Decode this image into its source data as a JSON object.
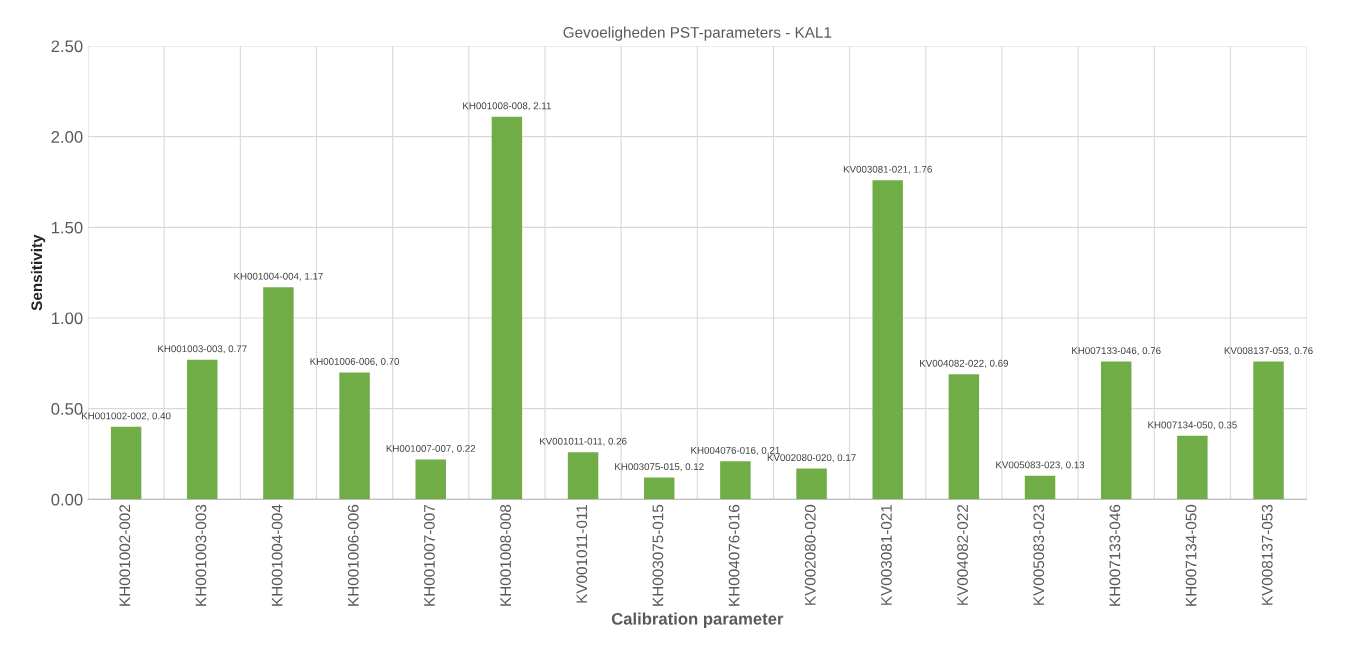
{
  "chart_data": {
    "type": "bar",
    "title": "Gevoeligheden PST-parameters - KAL1",
    "xlabel": "Calibration parameter",
    "ylabel": "Sensitivity",
    "categories": [
      "KH001002-002",
      "KH001003-003",
      "KH001004-004",
      "KH001006-006",
      "KH001007-007",
      "KH001008-008",
      "KV001011-011",
      "KH003075-015",
      "KH004076-016",
      "KV002080-020",
      "KV003081-021",
      "KV004082-022",
      "KV005083-023",
      "KH007133-046",
      "KH007134-050",
      "KV008137-053"
    ],
    "values": [
      0.4,
      0.77,
      1.17,
      0.7,
      0.22,
      2.11,
      0.26,
      0.12,
      0.21,
      0.17,
      1.76,
      0.69,
      0.13,
      0.76,
      0.35,
      0.76
    ],
    "value_labels": [
      "KH001002-002, 0.40",
      "KH001003-003, 0.77",
      "KH001004-004, 1.17",
      "KH001006-006, 0.70",
      "KH001007-007, 0.22",
      "KH001008-008, 2.11",
      "KV001011-011, 0.26",
      "KH003075-015, 0.12",
      "KH004076-016, 0.21",
      "KV002080-020, 0.17",
      "KV003081-021, 1.76",
      "KV004082-022, 0.69",
      "KV005083-023, 0.13",
      "KH007133-046, 0.76",
      "KH007134-050, 0.35",
      "KV008137-053, 0.76"
    ],
    "color": "#70ad47",
    "ylim": [
      0,
      2.5
    ],
    "yticks": [
      {
        "value": 0,
        "label": "0.00"
      },
      {
        "value": 0.5,
        "label": "0.50"
      },
      {
        "value": 1.0,
        "label": "1.00"
      },
      {
        "value": 1.5,
        "label": "1.50"
      },
      {
        "value": 2.0,
        "label": "2.00"
      },
      {
        "value": 2.5,
        "label": "2.50"
      }
    ],
    "grid": true
  }
}
